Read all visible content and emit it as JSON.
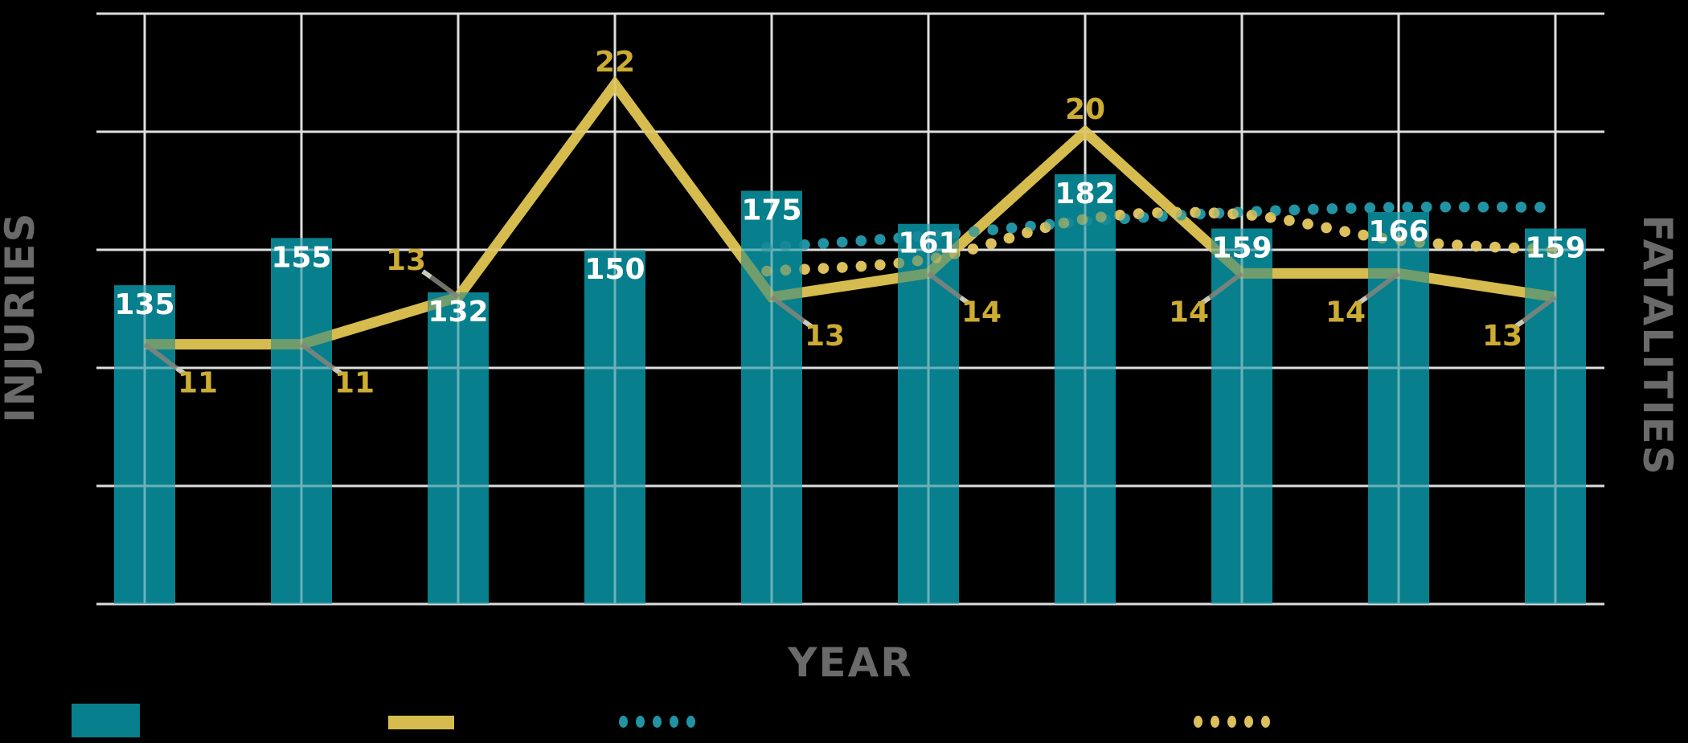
{
  "chart_data": {
    "type": "bar",
    "subtype": "combo bar+line with dotted trendlines",
    "background": "#000000",
    "num_categories": 10,
    "categories": [
      "",
      "",
      "",
      "",
      "",
      "",
      "",
      "",
      "",
      ""
    ],
    "xlabel": "YEAR",
    "ylabel_left": "INJURIES",
    "ylabel_right": "FATALITIES",
    "axis_left": {
      "range": [
        0,
        250
      ],
      "gridline_step": 50,
      "tick_labels_visible": false
    },
    "axis_right": {
      "range": [
        0,
        25
      ],
      "gridline_step": 5,
      "tick_labels_visible": false
    },
    "grid": {
      "visible": true,
      "color": "#C9C9C9"
    },
    "series": [
      {
        "id": "injuries",
        "type": "bar",
        "axis": "left",
        "color": "#087F8C",
        "label_color": "#FFFFFF",
        "values": [
          135,
          155,
          132,
          150,
          175,
          161,
          182,
          159,
          166,
          159
        ]
      },
      {
        "id": "fatalities",
        "type": "line",
        "axis": "right",
        "color": "#D6BC4E",
        "label_color": "#CCAC33",
        "values": [
          11,
          11,
          13,
          22,
          13,
          14,
          20,
          14,
          14,
          13
        ]
      },
      {
        "id": "injuries_trend",
        "type": "dotted",
        "axis": "left",
        "color": "#2193A4",
        "start_index": 4,
        "values": [
          151,
          156,
          162,
          166,
          168,
          168
        ],
        "labels_visible": false
      },
      {
        "id": "fatalities_trend",
        "type": "dotted",
        "axis": "right",
        "color": "#DCC05C",
        "start_index": 4,
        "values": [
          14.1,
          14.6,
          16.3,
          16.5,
          15.4,
          15.0
        ],
        "labels_visible": false
      }
    ],
    "legend": {
      "labels_visible": false,
      "items": [
        {
          "swatch": "bar",
          "color": "#087F8C",
          "label": ""
        },
        {
          "swatch": "solid-line",
          "color": "#D6BC4E",
          "label": ""
        },
        {
          "swatch": "dotted-line",
          "color": "#2193A4",
          "label": ""
        },
        {
          "swatch": "dotted-line",
          "color": "#DCC05C",
          "label": ""
        }
      ]
    }
  },
  "text": {
    "xlabel": "YEAR",
    "left_axis_title": "INJURIES",
    "right_axis_title": "FATALITIES"
  },
  "colors": {
    "background": "#000000",
    "bar": "#087F8C",
    "line": "#D6BC4E",
    "teal_dots": "#2193A4",
    "yellow_dots": "#DCC05C",
    "grid": "#C9C9C9",
    "axis_text": "#6A6A6A",
    "bar_value_text": "#FFFFFF",
    "line_value_text": "#CCAC33",
    "leader_line": "#85857A",
    "leader_tip": "#C9C9BC"
  }
}
